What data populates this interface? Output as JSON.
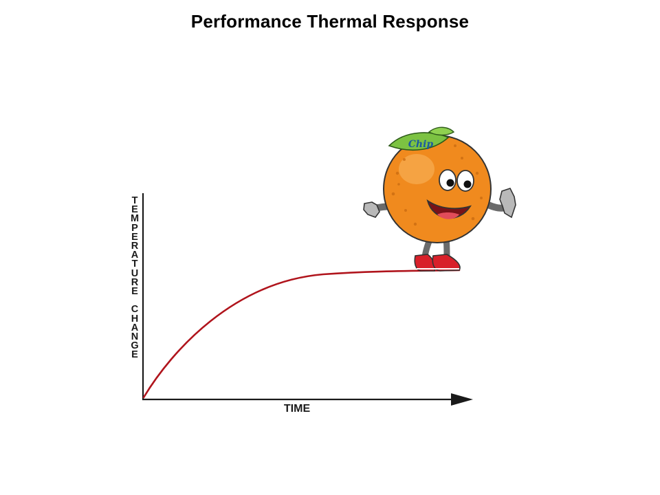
{
  "title": "Performance Thermal Response",
  "diagram": {
    "y_axis_label": "TEMPERATURE CHANGE",
    "x_axis_label": "TIME",
    "curve": {
      "shape": "exponential rise to plateau",
      "color": "#b0141c"
    },
    "axis_color": "#1a1a1a",
    "mascot": {
      "name_on_leaf": "Chip",
      "body_color": "#f08a1e",
      "leaf_color": "#7cc242",
      "shoe_color": "#d8202a"
    }
  }
}
